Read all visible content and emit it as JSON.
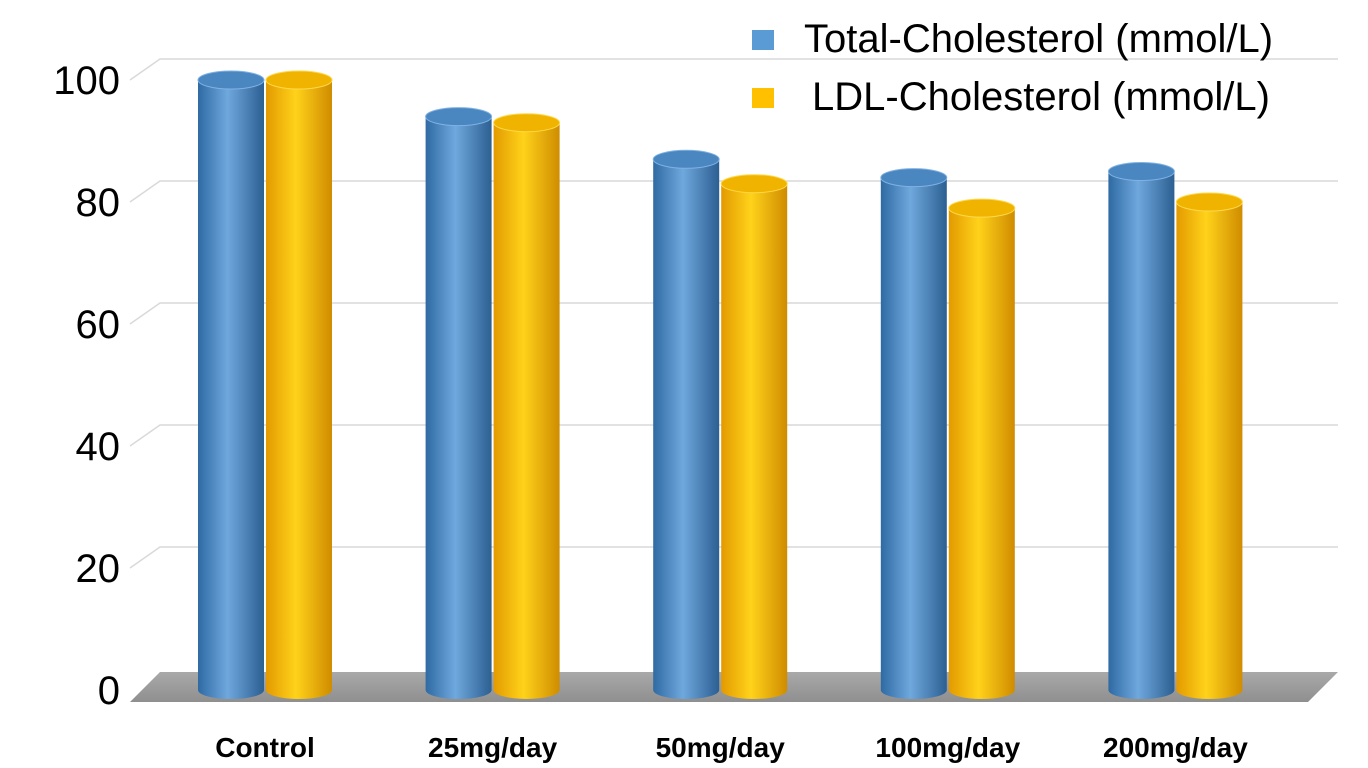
{
  "chart_data": {
    "type": "bar",
    "categories": [
      "Control",
      "25mg/day",
      "50mg/day",
      "100mg/day",
      "200mg/day"
    ],
    "series": [
      {
        "name": "Total-Cholesterol (mmol/L)",
        "values": [
          100,
          94,
          87,
          84,
          85
        ],
        "color": "#5B9BD5"
      },
      {
        "name": "LDL-Cholesterol (mmol/L)",
        "values": [
          100,
          93,
          83,
          79,
          80
        ],
        "color": "#FFC000"
      }
    ],
    "yticks": [
      "0",
      "20",
      "40",
      "60",
      "80",
      "100"
    ],
    "ylim": [
      0,
      100
    ],
    "grid": true,
    "legend_position": "top-right",
    "style": "3d-cylinder"
  }
}
